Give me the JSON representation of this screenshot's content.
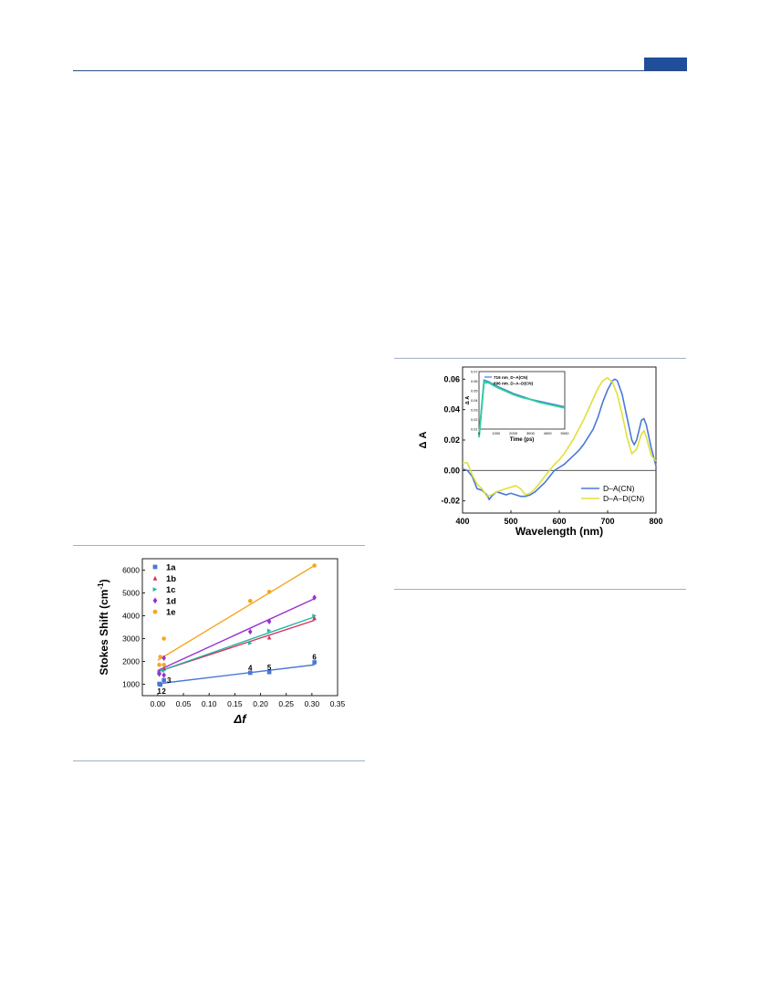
{
  "header": {
    "accent_color": "#1f4e9a"
  },
  "chart_data": [
    {
      "type": "scatter",
      "xlabel": "Δf",
      "ylabel": "Stokes Shift (cm",
      "ylabel_sup": "-1",
      "ylabel_close": ")",
      "xlim": [
        -0.03,
        0.35
      ],
      "ylim": [
        500,
        6500
      ],
      "xticks": [
        "0.00",
        "0.05",
        "0.10",
        "0.15",
        "0.20",
        "0.25",
        "0.30",
        "0.35"
      ],
      "xtick_values": [
        0,
        0.05,
        0.1,
        0.15,
        0.2,
        0.25,
        0.3,
        0.35
      ],
      "yticks": [
        "1000",
        "2000",
        "3000",
        "4000",
        "5000",
        "6000"
      ],
      "ytick_values": [
        1000,
        2000,
        3000,
        4000,
        5000,
        6000
      ],
      "legend_position": "top-left",
      "series": [
        {
          "name": "1a",
          "color": "#4a78d8",
          "marker": "square",
          "x": [
            0.003,
            0.005,
            0.012,
            0.18,
            0.217,
            0.305
          ],
          "y": [
            1020,
            980,
            1180,
            1500,
            1530,
            1960
          ],
          "fit": [
            [
              0.0,
              1020
            ],
            [
              0.305,
              1850
            ]
          ]
        },
        {
          "name": "1b",
          "color": "#d6305a",
          "marker": "triangle",
          "x": [
            0.003,
            0.012,
            0.217,
            0.305
          ],
          "y": [
            1550,
            1700,
            3050,
            3900
          ],
          "fit": [
            [
              0.0,
              1550
            ],
            [
              0.305,
              3800
            ]
          ]
        },
        {
          "name": "1c",
          "color": "#1fb5a3",
          "marker": "triangle-right",
          "x": [
            0.003,
            0.012,
            0.18,
            0.217,
            0.305
          ],
          "y": [
            1500,
            1600,
            2800,
            3350,
            4000
          ],
          "fit": [
            [
              0.0,
              1550
            ],
            [
              0.305,
              3950
            ]
          ]
        },
        {
          "name": "1d",
          "color": "#9a2fd6",
          "marker": "diamond",
          "x": [
            0.003,
            0.012,
            0.012,
            0.18,
            0.217,
            0.305
          ],
          "y": [
            1450,
            1400,
            2150,
            3300,
            3750,
            4800
          ],
          "fit": [
            [
              0.0,
              1600
            ],
            [
              0.305,
              4750
            ]
          ]
        },
        {
          "name": "1e",
          "color": "#f5a623",
          "marker": "hexagon",
          "x": [
            0.003,
            0.005,
            0.012,
            0.012,
            0.18,
            0.217,
            0.305
          ],
          "y": [
            1850,
            2200,
            3000,
            1850,
            4650,
            5050,
            6200
          ],
          "fit": [
            [
              0.0,
              2050
            ],
            [
              0.305,
              6200
            ]
          ]
        }
      ],
      "annotations": [
        {
          "text": "1",
          "x": 0.003,
          "y": 700
        },
        {
          "text": "2",
          "x": 0.012,
          "y": 700
        },
        {
          "text": "3",
          "x": 0.022,
          "y": 1180
        },
        {
          "text": "4",
          "x": 0.18,
          "y": 1720
        },
        {
          "text": "5",
          "x": 0.217,
          "y": 1750
        },
        {
          "text": "6",
          "x": 0.305,
          "y": 2200
        }
      ]
    },
    {
      "type": "line",
      "xlabel": "Wavelength (nm)",
      "ylabel": "Δ A",
      "xlim": [
        400,
        800
      ],
      "ylim": [
        -0.028,
        0.068
      ],
      "xticks": [
        "400",
        "500",
        "600",
        "700",
        "800"
      ],
      "xtick_values": [
        400,
        500,
        600,
        700,
        800
      ],
      "yticks": [
        "-0.02",
        "0.00",
        "0.02",
        "0.04",
        "0.06"
      ],
      "ytick_values": [
        -0.02,
        0.0,
        0.02,
        0.04,
        0.06
      ],
      "legend_position": "bottom-right",
      "series": [
        {
          "name": "D–A(CN)",
          "color": "#4a78d8",
          "x": [
            400,
            410,
            420,
            430,
            440,
            450,
            455,
            460,
            470,
            480,
            490,
            500,
            510,
            520,
            530,
            540,
            550,
            560,
            570,
            580,
            590,
            600,
            610,
            620,
            630,
            640,
            650,
            660,
            670,
            680,
            690,
            700,
            710,
            715,
            720,
            730,
            740,
            750,
            755,
            760,
            770,
            775,
            780,
            790,
            800
          ],
          "y": [
            0.001,
            0.0,
            -0.004,
            -0.012,
            -0.013,
            -0.016,
            -0.019,
            -0.017,
            -0.014,
            -0.015,
            -0.016,
            -0.015,
            -0.016,
            -0.017,
            -0.017,
            -0.016,
            -0.014,
            -0.011,
            -0.008,
            -0.004,
            0.0,
            0.002,
            0.004,
            0.007,
            0.01,
            0.013,
            0.017,
            0.022,
            0.027,
            0.035,
            0.045,
            0.053,
            0.059,
            0.06,
            0.059,
            0.05,
            0.035,
            0.02,
            0.017,
            0.02,
            0.033,
            0.034,
            0.03,
            0.015,
            0.003
          ]
        },
        {
          "name": "D–A–D(CN)",
          "color": "#e0e03a",
          "x": [
            400,
            410,
            420,
            430,
            440,
            450,
            460,
            470,
            480,
            490,
            500,
            510,
            520,
            530,
            540,
            550,
            560,
            570,
            580,
            590,
            600,
            610,
            620,
            630,
            640,
            650,
            660,
            670,
            680,
            690,
            700,
            710,
            720,
            730,
            740,
            750,
            760,
            770,
            775,
            780,
            790,
            800
          ],
          "y": [
            0.005,
            0.005,
            -0.003,
            -0.009,
            -0.012,
            -0.017,
            -0.016,
            -0.014,
            -0.013,
            -0.012,
            -0.011,
            -0.01,
            -0.012,
            -0.016,
            -0.015,
            -0.012,
            -0.008,
            -0.004,
            0.0,
            0.004,
            0.007,
            0.011,
            0.016,
            0.021,
            0.027,
            0.033,
            0.04,
            0.047,
            0.054,
            0.059,
            0.061,
            0.058,
            0.05,
            0.037,
            0.022,
            0.011,
            0.014,
            0.024,
            0.026,
            0.022,
            0.01,
            0.006
          ]
        }
      ],
      "inset": {
        "xlabel": "Time (ps)",
        "ylabel": "Δ A",
        "xlim": [
          0,
          5000
        ],
        "ylim": [
          0.01,
          0.07
        ],
        "xticks": [
          "0",
          "1000",
          "2000",
          "3000",
          "4000",
          "5000"
        ],
        "xtick_values": [
          0,
          1000,
          2000,
          3000,
          4000,
          5000
        ],
        "yticks": [
          "0.01",
          "0.02",
          "0.03",
          "0.04",
          "0.05",
          "0.06",
          "0.07"
        ],
        "ytick_values": [
          0.01,
          0.02,
          0.03,
          0.04,
          0.05,
          0.06,
          0.07
        ],
        "series": [
          {
            "name": "716 nm_D–A(CN)",
            "color": "#4a78d8",
            "x": [
              0,
              300,
              600,
              1000,
              1500,
              2000,
              2500,
              3000,
              3500,
              4000,
              4500,
              5000
            ],
            "y": [
              0.0015,
              0.061,
              0.059,
              0.055,
              0.051,
              0.047,
              0.044,
              0.041,
              0.039,
              0.037,
              0.035,
              0.033
            ]
          },
          {
            "name": "696 nm_D–A–D(CN)",
            "color": "#2fcf9a",
            "x": [
              0,
              300,
              600,
              1000,
              1500,
              2000,
              2500,
              3000,
              3500,
              4000,
              4500,
              5000
            ],
            "y": [
              0.0015,
              0.06,
              0.058,
              0.054,
              0.05,
              0.046,
              0.043,
              0.041,
              0.038,
              0.036,
              0.034,
              0.032
            ]
          }
        ]
      }
    }
  ]
}
